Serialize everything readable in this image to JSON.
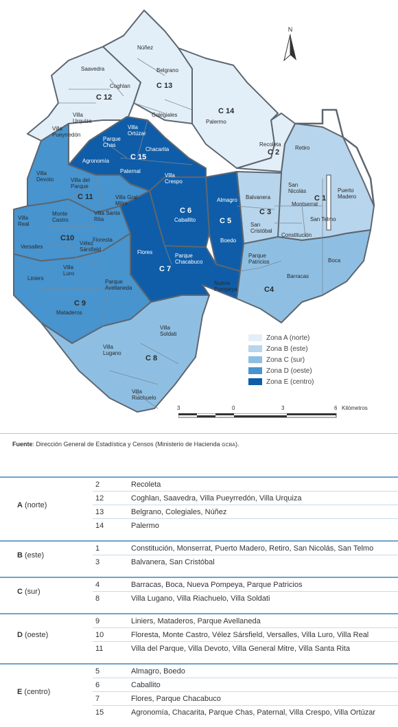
{
  "map": {
    "north_label": "N",
    "scale": {
      "ticks": [
        "3",
        "0",
        "3",
        "6"
      ],
      "unit": "Kilómetros"
    },
    "colors": {
      "zona_a": "#e3eff8",
      "zona_b": "#b7d5ec",
      "zona_c": "#8ebfe3",
      "zona_d": "#4794cf",
      "zona_e": "#0f5da8",
      "border": "#5d6670"
    },
    "communes": [
      {
        "code": "C 1",
        "zone": "b",
        "barrios": [
          "Retiro",
          "San Nicolás",
          "Puerto Madero",
          "Montserrat",
          "San Telmo",
          "Constitución"
        ]
      },
      {
        "code": "C 2",
        "zone": "a",
        "barrios": [
          "Recoleta"
        ]
      },
      {
        "code": "C 3",
        "zone": "b",
        "barrios": [
          "Balvanera",
          "San Cristóbal"
        ]
      },
      {
        "code": "C4",
        "zone": "c",
        "barrios": [
          "Parque Patricios",
          "Boca",
          "Barracas",
          "Nueva Pompeya"
        ]
      },
      {
        "code": "C 5",
        "zone": "e",
        "barrios": [
          "Almagro",
          "Boedo"
        ]
      },
      {
        "code": "C 6",
        "zone": "e",
        "barrios": [
          "Caballito"
        ]
      },
      {
        "code": "C 7",
        "zone": "e",
        "barrios": [
          "Flores",
          "Parque Chacabuco"
        ]
      },
      {
        "code": "C 8",
        "zone": "c",
        "barrios": [
          "Villa Soldati",
          "Villa Lugano",
          "Villa Riachuelo"
        ]
      },
      {
        "code": "C 9",
        "zone": "d",
        "barrios": [
          "Liniers",
          "Mataderos",
          "Parque Avellaneda"
        ]
      },
      {
        "code": "C10",
        "zone": "d",
        "barrios": [
          "Monte Castro",
          "Floresta",
          "Vélez Sársfield",
          "Versalles",
          "Villa Luro",
          "Villa Real"
        ]
      },
      {
        "code": "C 11",
        "zone": "d",
        "barrios": [
          "Villa Devoto",
          "Villa del Parque",
          "Villa Gral. Mitre",
          "Villa Santa Rita"
        ]
      },
      {
        "code": "C 12",
        "zone": "a",
        "barrios": [
          "Saavedra",
          "Coghlan",
          "Villa Urquiza",
          "Villa Pueyrredón"
        ]
      },
      {
        "code": "C 13",
        "zone": "a",
        "barrios": [
          "Núñez",
          "Belgrano",
          "Colegiales"
        ]
      },
      {
        "code": "C 14",
        "zone": "a",
        "barrios": [
          "Palermo"
        ]
      },
      {
        "code": "C 15",
        "zone": "e",
        "barrios": [
          "Villa Ortúzar",
          "Parque Chas",
          "Chacarita",
          "Agronomía",
          "Paternal",
          "Villa Crespo"
        ]
      }
    ]
  },
  "legend": [
    {
      "label": "Zona A (norte)",
      "color": "#e3eff8"
    },
    {
      "label": "Zona B (este)",
      "color": "#b7d5ec"
    },
    {
      "label": "Zona C (sur)",
      "color": "#8ebfe3"
    },
    {
      "label": "Zona D (oeste)",
      "color": "#4794cf"
    },
    {
      "label": "Zona E (centro)",
      "color": "#0f5da8"
    }
  ],
  "source": {
    "prefix": "Fuente",
    "text": ": Dirección General de Estadística y Censos (Ministerio de Hacienda ",
    "suffix": "GCBA",
    "end": ")."
  },
  "table": [
    {
      "zone_bold": "A",
      "zone_rest": " (norte)",
      "rows": [
        {
          "num": "2",
          "desc": "Recoleta"
        },
        {
          "num": "12",
          "desc": "Coghlan, Saavedra, Villa Pueyrredón, Villa Urquiza"
        },
        {
          "num": "13",
          "desc": "Belgrano, Colegiales, Núñez"
        },
        {
          "num": "14",
          "desc": "Palermo"
        }
      ]
    },
    {
      "zone_bold": "B",
      "zone_rest": " (este)",
      "rows": [
        {
          "num": "1",
          "desc": "Constitución, Monserrat, Puerto Madero, Retiro, San Nicolás, San Telmo"
        },
        {
          "num": "3",
          "desc": "Balvanera, San Cristóbal"
        }
      ]
    },
    {
      "zone_bold": "C",
      "zone_rest": " (sur)",
      "rows": [
        {
          "num": "4",
          "desc": "Barracas, Boca, Nueva Pompeya, Parque Patricios"
        },
        {
          "num": "8",
          "desc": "Villa Lugano, Villa Riachuelo, Villa Soldati"
        }
      ]
    },
    {
      "zone_bold": "D",
      "zone_rest": " (oeste)",
      "rows": [
        {
          "num": "9",
          "desc": "Liniers, Mataderos, Parque Avellaneda"
        },
        {
          "num": "10",
          "desc": "Floresta, Monte Castro, Vélez Sársfield, Versalles, Villa Luro, Villa Real"
        },
        {
          "num": "11",
          "desc": "Villa del Parque, Villa Devoto, Villa General Mitre, Villa Santa Rita"
        }
      ]
    },
    {
      "zone_bold": "E",
      "zone_rest": " (centro)",
      "rows": [
        {
          "num": "5",
          "desc": "Almagro, Boedo"
        },
        {
          "num": "6",
          "desc": "Caballito"
        },
        {
          "num": "7",
          "desc": "Flores, Parque Chacabuco"
        },
        {
          "num": "15",
          "desc": "Agronomía, Chacarita, Parque Chas, Paternal, Villa Crespo, Villa Ortúzar"
        }
      ]
    }
  ]
}
